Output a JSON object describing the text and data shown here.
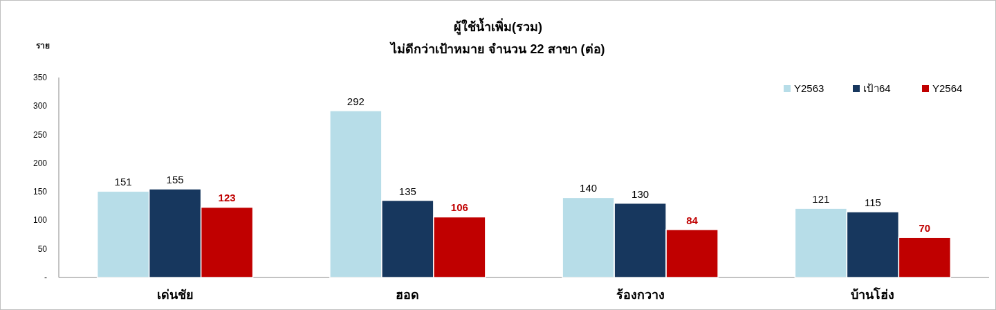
{
  "chart_data": {
    "type": "bar",
    "title": "ผู้ใช้น้ำเพิ่ม(รวม)",
    "subtitle": "ไม่ดีกว่าเป้าหมาย จำนวน 22 สาขา (ต่อ)",
    "ylabel": "ราย",
    "categories": [
      "เด่นชัย",
      "ฮอด",
      "ร้องกวาง",
      "บ้านโฮ่ง"
    ],
    "series": [
      {
        "name": "Y2563",
        "color": "#b7dde8",
        "values": [
          151,
          292,
          140,
          121
        ]
      },
      {
        "name": "เป้า64",
        "color": "#17375e",
        "values": [
          155,
          135,
          130,
          115
        ]
      },
      {
        "name": "Y2564",
        "color": "#c00000",
        "values": [
          123,
          106,
          84,
          70
        ]
      }
    ],
    "ylim": [
      0,
      350
    ],
    "yticks": [
      {
        "value": 0,
        "label": "-"
      },
      50,
      100,
      150,
      200,
      250,
      300,
      350
    ],
    "data_labels": true,
    "legend": "top right",
    "grid": false
  }
}
